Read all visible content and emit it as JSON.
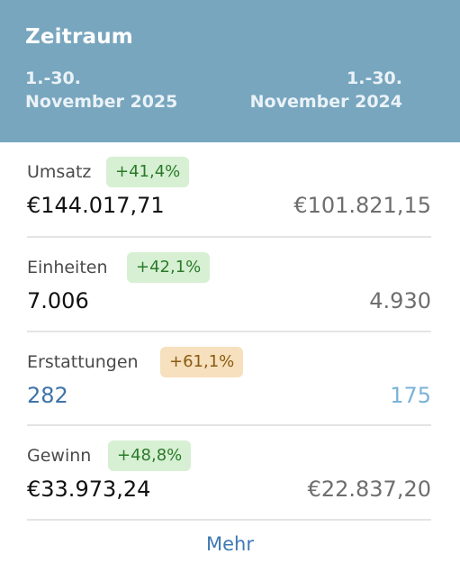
{
  "header": {
    "title": "Zeitraum",
    "current_period_line1": "1.-30.",
    "current_period_line2": "November 2025",
    "previous_period_line1": "1.-30.",
    "previous_period_line2": "November 2024",
    "background_color": "#78a6be"
  },
  "metrics": [
    {
      "label": "Umsatz",
      "change": "+41,4%",
      "change_style": "positive",
      "current": "€144.017,71",
      "previous": "€101.821,15"
    },
    {
      "label": "Einheiten",
      "change": "+42,1%",
      "change_style": "positive",
      "current": "7.006",
      "previous": "4.930"
    },
    {
      "label": "Erstattungen",
      "change": "+61,1%",
      "change_style": "warning",
      "current": "282",
      "previous": "175"
    },
    {
      "label": "Gewinn",
      "change": "+48,8%",
      "change_style": "positive",
      "current": "€33.973,24",
      "previous": "€22.837,20"
    }
  ],
  "footer": {
    "more_label": "Mehr"
  },
  "colors": {
    "positive_badge_bg": "#d7f0d3",
    "warning_badge_bg": "#f6e0bd",
    "link": "#3f79b2"
  }
}
